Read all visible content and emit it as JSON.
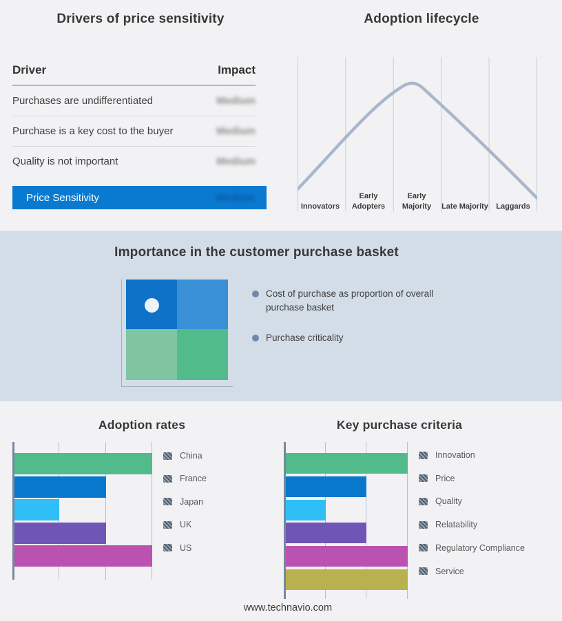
{
  "footer": {
    "website": "www.technavio.com"
  },
  "basket_section": {
    "title": "Importance in the customer purchase basket",
    "background": "#d3dde8",
    "bullets": [
      "Cost of purchase as proportion of overall purchase basket",
      "Purchase criticality"
    ],
    "bullet_dot_color": "#7089ab",
    "quadrant_colors": {
      "top_left": "#0e72c8",
      "top_right": "#3990d6",
      "bottom_left": "#7fc5a1",
      "bottom_right": "#52bb8b"
    },
    "marker": {
      "shape": "white-dot",
      "quadrant": "top_left",
      "color": "#edf5fa"
    }
  },
  "chart_data": [
    {
      "type": "table",
      "title": "Drivers of price sensitivity",
      "columns": [
        "Driver",
        "Impact"
      ],
      "rows": [
        [
          "Purchases are undifferentiated",
          "Medium"
        ],
        [
          "Purchase is a key cost to the buyer",
          "Medium"
        ],
        [
          "Quality is not important",
          "Medium"
        ]
      ],
      "summary_row": [
        "Price Sensitivity",
        "Medium"
      ],
      "summary_row_color": "#0a7ad1",
      "note": "impact values are shown blurred in the source image"
    },
    {
      "type": "line",
      "title": "Adoption lifecycle",
      "x_categories": [
        "Innovators",
        "Early Adopters",
        "Early Majority",
        "Late Majority",
        "Laggards"
      ],
      "shape": "bell curve rising from Innovators, peaking in Early Majority, falling through Laggards",
      "curve_points_pct": [
        [
          0,
          15
        ],
        [
          48,
          100
        ],
        [
          100,
          8
        ]
      ],
      "curve_color": "#a9b7cc",
      "gridline_color": "#c6cedb",
      "grid": true,
      "legend_position": "none"
    },
    {
      "type": "bar",
      "orientation": "horizontal",
      "title": "Adoption rates",
      "categories": [
        "China",
        "France",
        "Japan",
        "UK",
        "US"
      ],
      "values": [
        3,
        2,
        1,
        2,
        3
      ],
      "xlim": [
        0,
        3
      ],
      "grid": true,
      "legend_position": "right",
      "colors": [
        "#52bb8b",
        "#0778cc",
        "#2fbef5",
        "#6f55b5",
        "#bb52b2"
      ]
    },
    {
      "type": "bar",
      "orientation": "horizontal",
      "title": "Key purchase criteria",
      "categories": [
        "Innovation",
        "Price",
        "Quality",
        "Relatability",
        "Regulatory Compliance",
        "Service"
      ],
      "values": [
        3,
        2,
        1,
        2,
        3,
        3
      ],
      "xlim": [
        0,
        3
      ],
      "grid": true,
      "legend_position": "right",
      "colors": [
        "#52bb8b",
        "#0778cc",
        "#2fbef5",
        "#6f55b5",
        "#bb52b2",
        "#b9b04e"
      ]
    }
  ]
}
